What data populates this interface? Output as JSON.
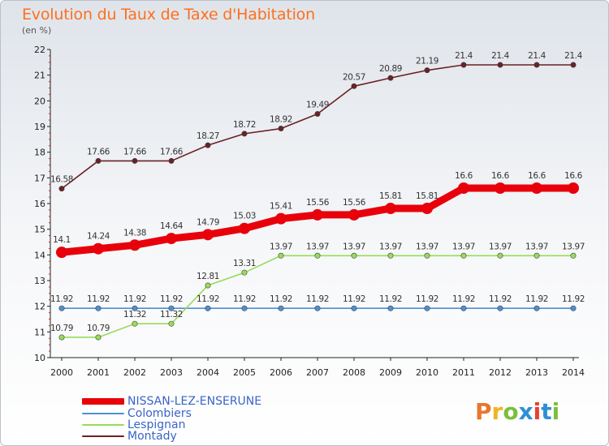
{
  "title": "Evolution du Taux de Taxe d'Habitation",
  "subtitle": "(en %)",
  "logo_text": "Proxiti",
  "chart_data": {
    "type": "line",
    "x": [
      2000,
      2001,
      2002,
      2003,
      2004,
      2005,
      2006,
      2007,
      2008,
      2009,
      2010,
      2011,
      2012,
      2013,
      2014
    ],
    "ylim": [
      10,
      22
    ],
    "yticks": [
      10,
      11,
      12,
      13,
      14,
      15,
      16,
      17,
      18,
      19,
      20,
      21,
      22
    ],
    "grid": false,
    "legend_position": "bottom-left",
    "series": [
      {
        "name": "NISSAN-LEZ-ENSERUNE",
        "color": "#e8000a",
        "values": [
          14.1,
          14.24,
          14.38,
          14.64,
          14.79,
          15.03,
          15.41,
          15.56,
          15.56,
          15.81,
          15.81,
          16.6,
          16.6,
          16.6,
          16.6
        ],
        "labels": [
          "14.1",
          "14.24",
          "14.38",
          "14.64",
          "14.79",
          "15.03",
          "15.41",
          "15.56",
          "15.56",
          "15.81",
          "15.81",
          "16.6",
          "16.6",
          "16.6",
          "16.6"
        ]
      },
      {
        "name": "Colombiers",
        "color": "#4f8fd0",
        "values": [
          11.92,
          11.92,
          11.92,
          11.92,
          11.92,
          11.92,
          11.92,
          11.92,
          11.92,
          11.92,
          11.92,
          11.92,
          11.92,
          11.92,
          11.92
        ],
        "labels": [
          "11.92",
          "11.92",
          "11.92",
          "11.92",
          "11.92",
          "11.92",
          "11.92",
          "11.92",
          "11.92",
          "11.92",
          "11.92",
          "11.92",
          "11.92",
          "11.92",
          "11.92"
        ]
      },
      {
        "name": "Lespignan",
        "color": "#98dc5a",
        "values": [
          10.79,
          10.79,
          11.32,
          11.32,
          12.81,
          13.31,
          13.97,
          13.97,
          13.97,
          13.97,
          13.97,
          13.97,
          13.97,
          13.97,
          13.97
        ],
        "labels": [
          "10.79",
          "10.79",
          "11.32",
          "11.32",
          "12.81",
          "13.31",
          "13.97",
          "13.97",
          "13.97",
          "13.97",
          "13.97",
          "13.97",
          "13.97",
          "13.97",
          "13.97"
        ]
      },
      {
        "name": "Montady",
        "color": "#6b2124",
        "values": [
          16.58,
          17.66,
          17.66,
          17.66,
          18.27,
          18.72,
          18.92,
          19.49,
          20.57,
          20.89,
          21.19,
          21.4,
          21.4,
          21.4,
          21.4
        ],
        "labels": [
          "16.58",
          "17.66",
          "17.66",
          "17.66",
          "18.27",
          "18.72",
          "18.92",
          "19.49",
          "20.57",
          "20.89",
          "21.19",
          "21.4",
          "21.4",
          "21.4",
          "21.4"
        ]
      }
    ]
  }
}
